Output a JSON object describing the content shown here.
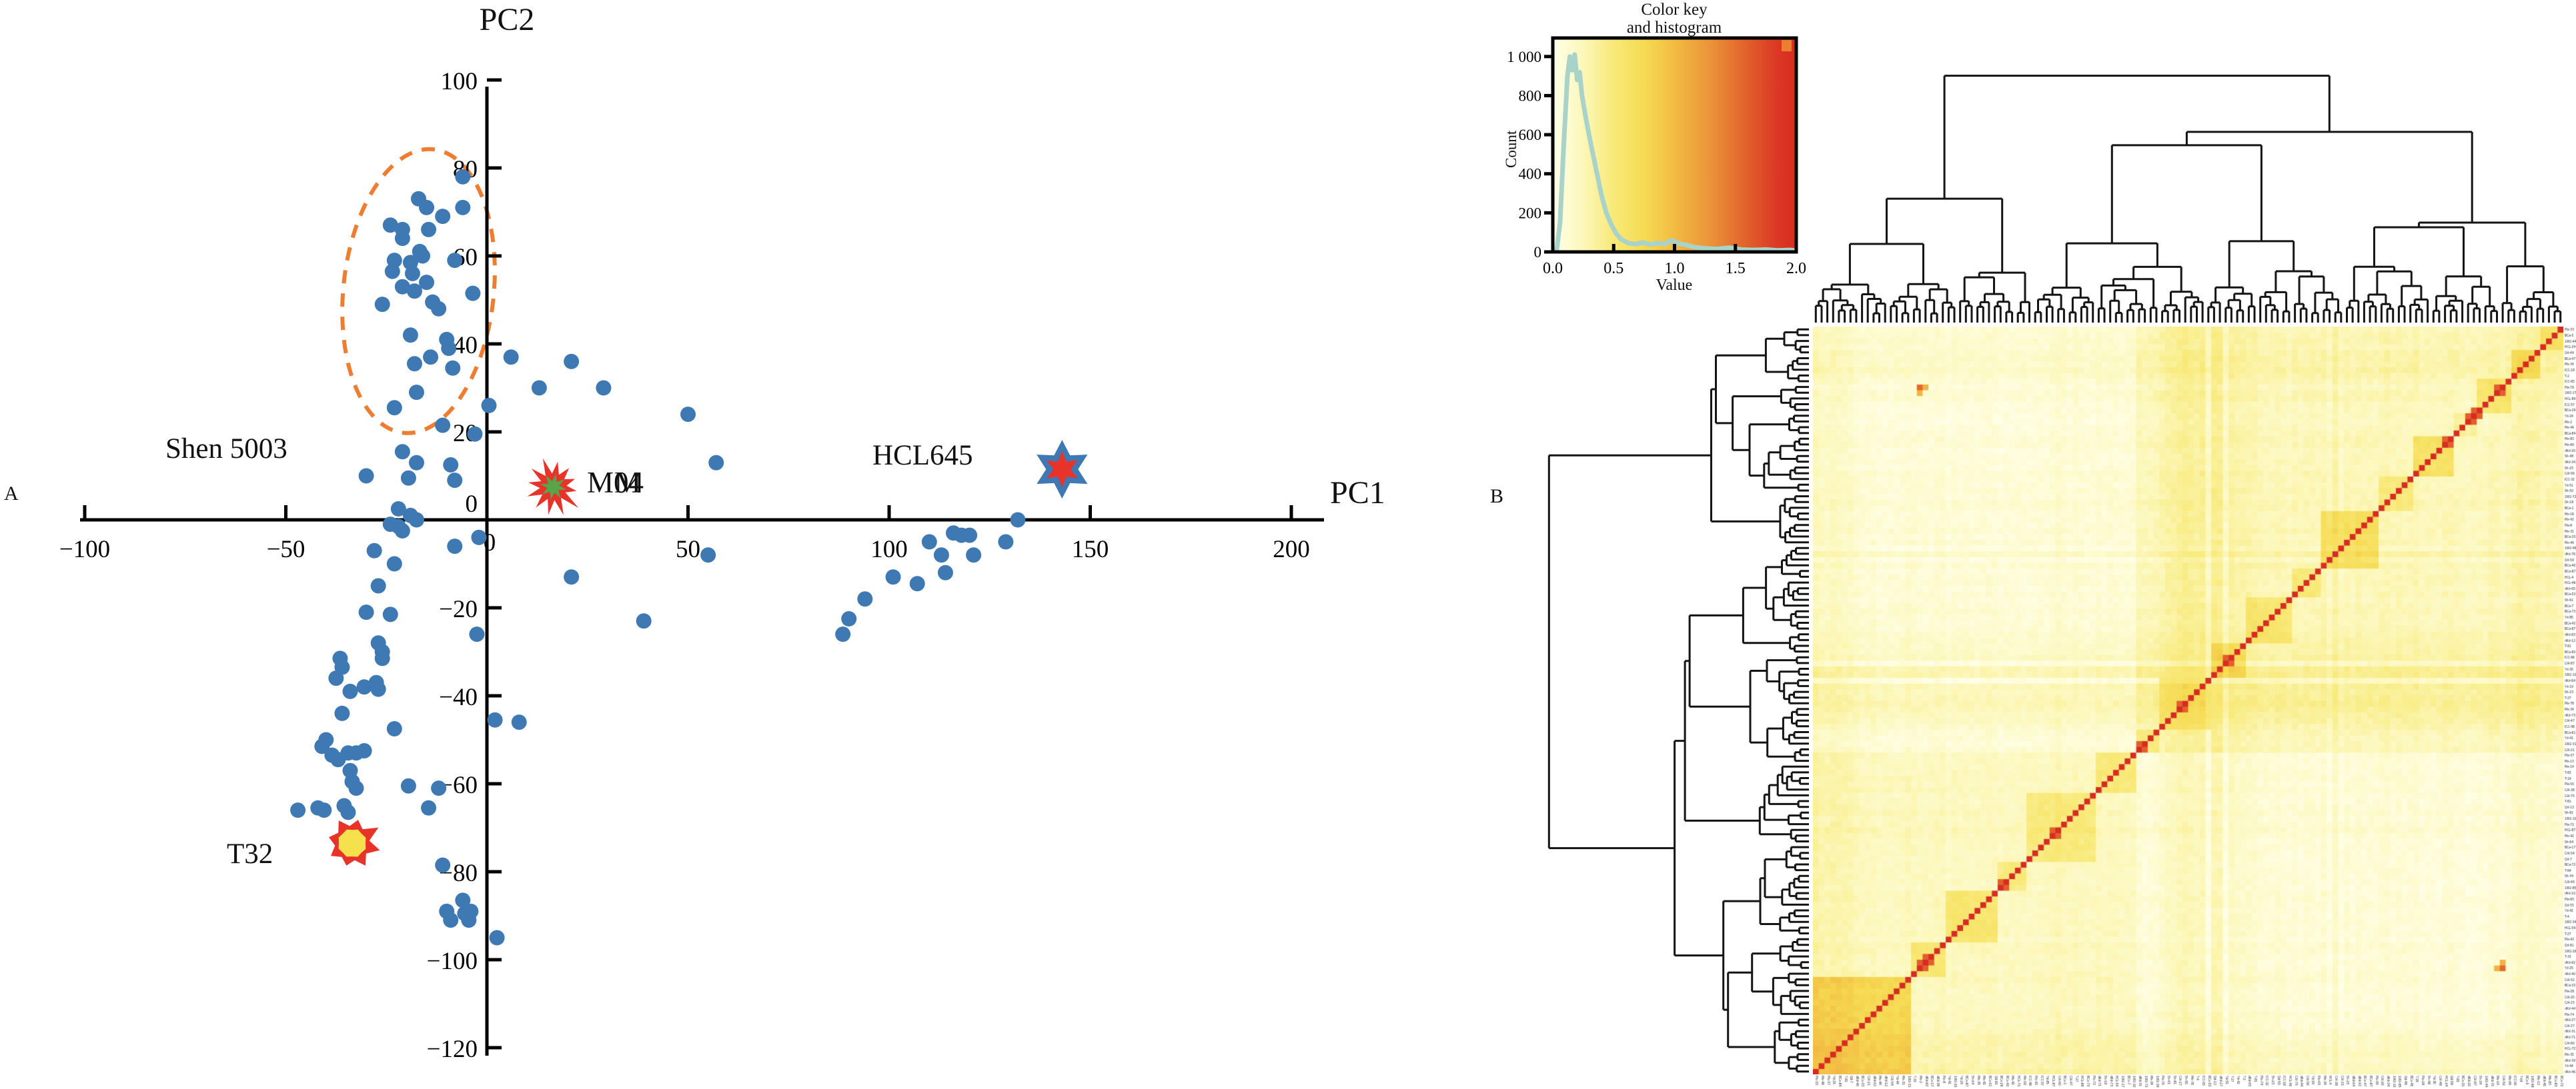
{
  "figure": {
    "panel_a_letter": "A",
    "panel_b_letter": "B"
  },
  "chart_data": [
    {
      "type": "scatter",
      "panel": "A",
      "xlabel": "PC1",
      "ylabel": "PC2",
      "xlim": [
        -101,
        207
      ],
      "ylim": [
        -122,
        101
      ],
      "xticks": [
        -100,
        -50,
        0,
        50,
        100,
        150,
        200
      ],
      "xtick_labels": [
        "−100",
        "−50",
        "0",
        "50",
        "100",
        "150",
        "200"
      ],
      "yticks": [
        100,
        80,
        60,
        40,
        20,
        0,
        -20,
        -40,
        -60,
        -80,
        -100,
        -120
      ],
      "ytick_labels": [
        "100",
        "80",
        "60",
        "40",
        "20",
        "0",
        "−20",
        "−40",
        "−60",
        "−80",
        "−100",
        "−120"
      ],
      "point_color": "#3E79B4",
      "point_radius_px": 11.5,
      "points": [
        [
          -6,
          78
        ],
        [
          -17,
          73
        ],
        [
          -15,
          71
        ],
        [
          -11,
          69
        ],
        [
          -6,
          71
        ],
        [
          -24,
          67
        ],
        [
          -21,
          66
        ],
        [
          -14.5,
          66
        ],
        [
          -21,
          64
        ],
        [
          -16.7,
          61
        ],
        [
          -16,
          60
        ],
        [
          -23,
          59
        ],
        [
          -19,
          58.5
        ],
        [
          -8,
          59
        ],
        [
          -23.5,
          56.5
        ],
        [
          -18.5,
          56
        ],
        [
          -15,
          54
        ],
        [
          -21,
          53
        ],
        [
          -18,
          52
        ],
        [
          -13.5,
          49.5
        ],
        [
          -26,
          49
        ],
        [
          -12,
          48
        ],
        [
          -3.5,
          51.5
        ],
        [
          -19,
          42
        ],
        [
          -10,
          41
        ],
        [
          -9.5,
          39
        ],
        [
          -14,
          37
        ],
        [
          -18,
          35.5
        ],
        [
          -8.5,
          34.5
        ],
        [
          -17.5,
          29
        ],
        [
          -23,
          25.5
        ],
        [
          -11,
          21.5
        ],
        [
          -3,
          19.5
        ],
        [
          0.5,
          26
        ],
        [
          6,
          37
        ],
        [
          13,
          30
        ],
        [
          21,
          36
        ],
        [
          29,
          30
        ],
        [
          50,
          24
        ],
        [
          57,
          13
        ],
        [
          55,
          -8
        ],
        [
          39,
          -23
        ],
        [
          21,
          -13
        ],
        [
          -21,
          15.5
        ],
        [
          -17.5,
          13
        ],
        [
          -9,
          12.5
        ],
        [
          -8,
          9
        ],
        [
          -19.5,
          9.5
        ],
        [
          -30,
          10
        ],
        [
          -22,
          2.5
        ],
        [
          -19,
          1
        ],
        [
          -17.5,
          0
        ],
        [
          -22,
          -1.5
        ],
        [
          -24,
          -1
        ],
        [
          -21,
          -2.5
        ],
        [
          -8,
          -6
        ],
        [
          -2,
          -4
        ],
        [
          -28,
          -7
        ],
        [
          -23,
          -10
        ],
        [
          -27,
          -15
        ],
        [
          -30,
          -21
        ],
        [
          -24,
          -21.5
        ],
        [
          -2.5,
          -26
        ],
        [
          -27,
          -28
        ],
        [
          -26,
          -30
        ],
        [
          -26,
          -31.5
        ],
        [
          -36.5,
          -31.5
        ],
        [
          -36,
          -33.5
        ],
        [
          -37.5,
          -36
        ],
        [
          -34,
          -39
        ],
        [
          -30.5,
          -38
        ],
        [
          -27.5,
          -37
        ],
        [
          -27,
          -38.5
        ],
        [
          -36,
          -44
        ],
        [
          -23,
          -47.5
        ],
        [
          -40,
          -50
        ],
        [
          -41,
          -51.5
        ],
        [
          -38.5,
          -53.5
        ],
        [
          -37,
          -54.5
        ],
        [
          -34.5,
          -53
        ],
        [
          -32.5,
          -53
        ],
        [
          -30.5,
          -52.5
        ],
        [
          -34,
          -57
        ],
        [
          -33.5,
          -59.5
        ],
        [
          -32.5,
          -61
        ],
        [
          -19.5,
          -60.5
        ],
        [
          -12,
          -61
        ],
        [
          2,
          -45.5
        ],
        [
          8,
          -46
        ],
        [
          -47,
          -66
        ],
        [
          -42,
          -65.5
        ],
        [
          -40.5,
          -66
        ],
        [
          -35.5,
          -65
        ],
        [
          -34.5,
          -66.5
        ],
        [
          -14.5,
          -65.5
        ],
        [
          -11,
          -78.5
        ],
        [
          -10,
          -89
        ],
        [
          -6,
          -86.5
        ],
        [
          -5.5,
          -89.5
        ],
        [
          -4.5,
          -91
        ],
        [
          -4,
          -89
        ],
        [
          -9,
          -91
        ],
        [
          2.5,
          -95
        ],
        [
          88.5,
          -26
        ],
        [
          90,
          -22.5
        ],
        [
          94,
          -18
        ],
        [
          101,
          -13
        ],
        [
          107,
          -14.5
        ],
        [
          110,
          -5
        ],
        [
          113,
          -8
        ],
        [
          114,
          -12
        ],
        [
          116,
          -3
        ],
        [
          118,
          -3.5
        ],
        [
          120,
          -3.5
        ],
        [
          121,
          -8
        ],
        [
          129,
          -5
        ],
        [
          132,
          0
        ]
      ],
      "highlight_markers": [
        {
          "label": "M04",
          "ghost_overlap": "M",
          "x": 16.5,
          "y": 7.5,
          "style": "red-burst-with-green-star-center",
          "outer_color": "#E8332B",
          "inner_color": "#57A44B"
        },
        {
          "label": "HCL645",
          "x": 143,
          "y": 11.5,
          "style": "blue-6-point-star-with-red-star-center",
          "outer_color": "#3E79B4",
          "inner_color": "#E8332B"
        },
        {
          "label": "T32",
          "x": -33.5,
          "y": -73.5,
          "style": "red-8-point-star-with-yellow-center",
          "outer_color": "#E8332B",
          "inner_color": "#F4E14D"
        }
      ],
      "ellipse_annotation": {
        "label": "Shen 5003",
        "cx": -17,
        "cy": 52,
        "rx": 18.7,
        "ry": 32.4,
        "rotation_deg": 6,
        "color": "#ED7D31",
        "style": "dashed"
      }
    },
    {
      "type": "heatmap",
      "panel": "B",
      "n_rows": 130,
      "n_cols": 130,
      "symmetric": true,
      "diagonal_value": 2,
      "value_range": [
        0,
        2
      ],
      "diagonal_orientation": "bottom-left to top-right",
      "cluster_block_sizes": [
        17,
        6,
        9,
        5,
        12,
        7,
        4,
        9,
        6,
        8,
        5,
        10,
        6,
        7,
        4,
        6,
        5,
        4
      ],
      "superblock_boundary": 56,
      "outlier_cells": [
        [
          18,
          119
        ],
        [
          119,
          18
        ]
      ],
      "colormap_stops": [
        [
          0.0,
          "#FFFFEB"
        ],
        [
          0.25,
          "#FCF7B9"
        ],
        [
          0.5,
          "#F8E978"
        ],
        [
          0.75,
          "#F6DB53"
        ],
        [
          1.0,
          "#F2BB42"
        ],
        [
          1.3,
          "#EB9239"
        ],
        [
          1.6,
          "#E25F2C"
        ],
        [
          1.85,
          "#DB3726"
        ],
        [
          2.0,
          "#D72C22"
        ]
      ],
      "dendrograms": {
        "top": true,
        "left": true,
        "line_color": "#141414"
      },
      "tick_labels_note": "~130 sample-name tick labels along the right and bottom edges, illegible at source resolution",
      "seed": 42,
      "color_key": {
        "title_line1": "Color key",
        "title_line2": "and histogram",
        "xlabel": "Value",
        "ylabel": "Count",
        "xticks": [
          0.0,
          0.5,
          1.0,
          1.5,
          2.0
        ],
        "xtick_labels": [
          "0.0",
          "0.5",
          "1.0",
          "1.5",
          "2.0"
        ],
        "yticks": [
          0,
          200,
          400,
          600,
          800,
          1000
        ],
        "ytick_labels": [
          "0",
          "200",
          "400",
          "600",
          "800",
          "1 000"
        ],
        "curve_color": "#A9D2C8",
        "corner_swatch_color": "#EB7F2E",
        "histogram": [
          [
            0.03,
            0
          ],
          [
            0.06,
            150
          ],
          [
            0.09,
            550
          ],
          [
            0.12,
            900
          ],
          [
            0.14,
            1000
          ],
          [
            0.16,
            930
          ],
          [
            0.18,
            1010
          ],
          [
            0.2,
            880
          ],
          [
            0.22,
            920
          ],
          [
            0.24,
            800
          ],
          [
            0.27,
            690
          ],
          [
            0.3,
            590
          ],
          [
            0.33,
            500
          ],
          [
            0.36,
            410
          ],
          [
            0.4,
            290
          ],
          [
            0.44,
            200
          ],
          [
            0.48,
            140
          ],
          [
            0.52,
            95
          ],
          [
            0.56,
            65
          ],
          [
            0.62,
            45
          ],
          [
            0.68,
            40
          ],
          [
            0.74,
            48
          ],
          [
            0.8,
            38
          ],
          [
            0.86,
            45
          ],
          [
            0.92,
            40
          ],
          [
            0.98,
            60
          ],
          [
            1.04,
            42
          ],
          [
            1.1,
            35
          ],
          [
            1.16,
            25
          ],
          [
            1.25,
            18
          ],
          [
            1.35,
            15
          ],
          [
            1.45,
            22
          ],
          [
            1.55,
            12
          ],
          [
            1.65,
            10
          ],
          [
            1.75,
            12
          ],
          [
            1.85,
            8
          ],
          [
            1.95,
            10
          ],
          [
            2.0,
            6
          ]
        ]
      }
    }
  ]
}
